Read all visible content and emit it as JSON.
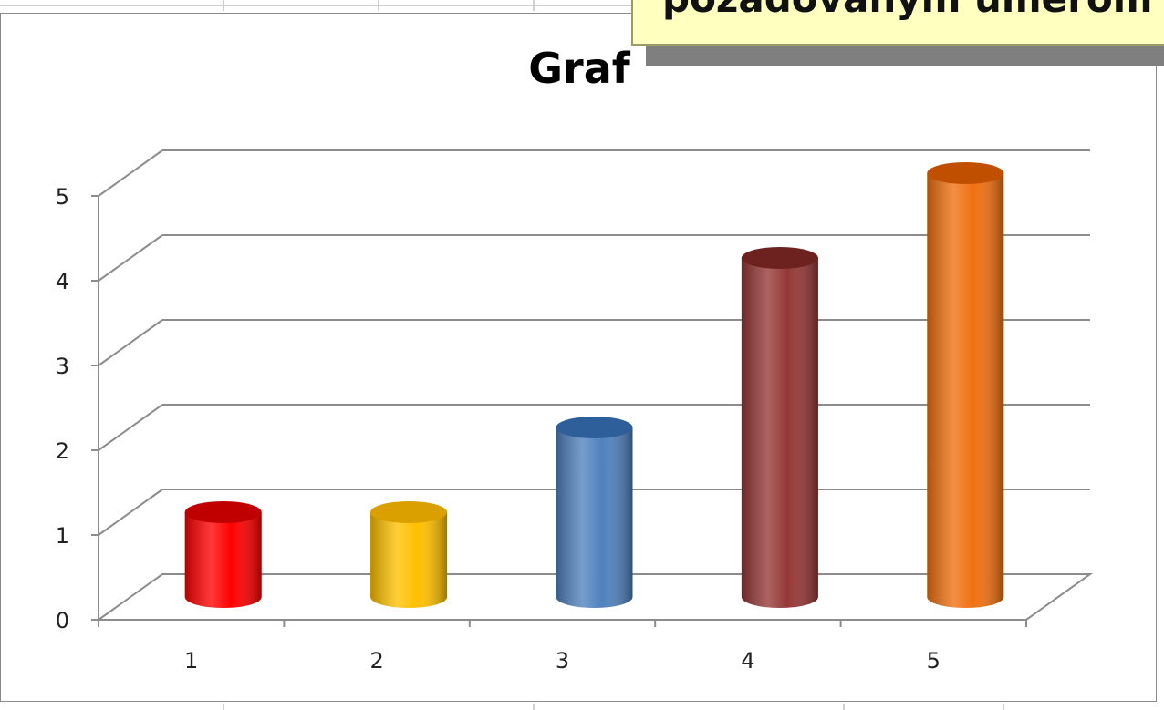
{
  "note": {
    "text": "požadovaným umerom"
  },
  "chart_data": {
    "type": "bar",
    "title": "Graf",
    "categories": [
      "1",
      "2",
      "3",
      "4",
      "5"
    ],
    "values": [
      1,
      1,
      2,
      4,
      5
    ],
    "ylim": [
      0,
      5
    ],
    "yticks": [
      "0",
      "1",
      "2",
      "3",
      "4",
      "5"
    ],
    "grid": true,
    "legend": "none",
    "colors": [
      "#ff0000",
      "#ffc000",
      "#4f81bd",
      "#953735",
      "#f07010"
    ],
    "top_colors": [
      "#c00000",
      "#d9a000",
      "#2f5f9a",
      "#6e2220",
      "#c05000"
    ]
  }
}
